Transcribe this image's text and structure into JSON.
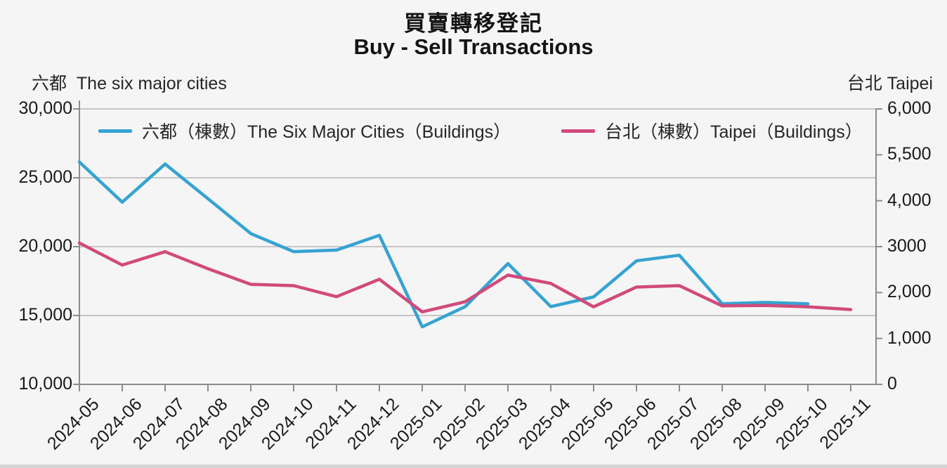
{
  "title": {
    "zh": "買賣轉移登記",
    "en": "Buy - Sell Transactions"
  },
  "axis_units": {
    "left": "六都  The six major cities",
    "right": "台北 Taipei"
  },
  "legend": [
    {
      "label": "六都（棟數）The Six Major Cities（Buildings）",
      "color": "#35A3D2"
    },
    {
      "label": "台北（棟數）Taipei（Buildings）",
      "color": "#D14A7C"
    }
  ],
  "colors": {
    "background": "#F5F5F5",
    "series_six_cities": "#35A3D2",
    "series_taipei": "#D14A7C",
    "gridline": "#ABABAB",
    "axis_line": "#8C8C8C",
    "text": "#1a1a1a"
  },
  "chart_data": {
    "type": "line",
    "title": "買賣轉移登記 Buy - Sell Transactions",
    "categories": [
      "2024-05",
      "2024-06",
      "2024-07",
      "2024-08",
      "2024-09",
      "2024-10",
      "2024-11",
      "2024-12",
      "2025-01",
      "2025-02",
      "2025-03",
      "2025-04",
      "2025-05",
      "2025-06",
      "2025-07",
      "2025-08",
      "2025-09",
      "2025-10",
      "2025-11"
    ],
    "series": [
      {
        "name": "六都（棟數）The Six Major Cities（Buildings）",
        "axis": "left",
        "color": "#35A3D2",
        "values": [
          26150,
          23230,
          26000,
          23480,
          20950,
          19640,
          19750,
          20820,
          14180,
          15640,
          18770,
          15650,
          16350,
          18970,
          19380,
          15850,
          15950,
          15850,
          null
        ]
      },
      {
        "name": "台北（棟數）Taipei（Buildings）",
        "axis": "right",
        "color": "#D14A7C",
        "values": [
          3080,
          2600,
          2890,
          2520,
          2180,
          2150,
          1910,
          2290,
          1580,
          1800,
          2380,
          2200,
          1690,
          2120,
          2150,
          1710,
          1720,
          1690,
          1630
        ]
      }
    ],
    "left_axis": {
      "label": "六都 The six major cities",
      "min": 10000,
      "max": 30000,
      "tick_labels": [
        "30,000",
        "25,000",
        "20,000",
        "15,000",
        "10,000"
      ]
    },
    "right_axis": {
      "label": "台北 Taipei",
      "min": 0,
      "max": 6000,
      "tick_labels": [
        "6,000",
        "5,500",
        "4,000",
        "3000",
        "2,000",
        "1,000",
        "0"
      ]
    },
    "x_axis": {
      "tick_rotation_deg": -45
    },
    "grid": "horizontal gridlines at left-axis ticks",
    "legend_position": "top-inside"
  }
}
